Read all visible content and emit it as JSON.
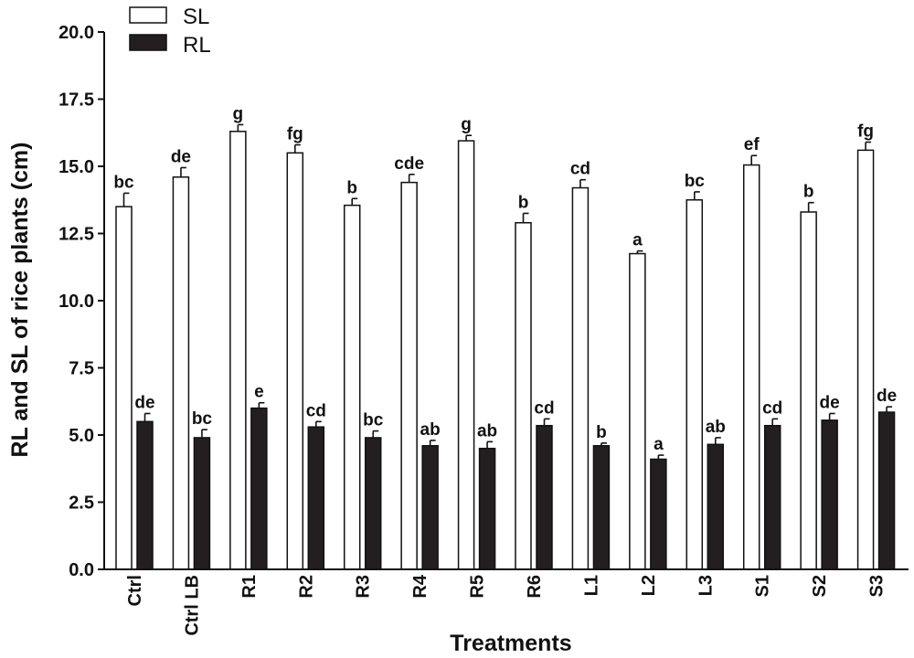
{
  "chart_data": {
    "type": "bar",
    "title": "",
    "xlabel": "Treatments",
    "ylabel": "RL and SL of rice plants (cm)",
    "ylim": [
      0,
      20
    ],
    "yticks": [
      "0.0",
      "2.5",
      "5.0",
      "7.5",
      "10.0",
      "12.5",
      "15.0",
      "17.5",
      "20.0"
    ],
    "categories": [
      "Ctrl",
      "Ctrl LB",
      "R1",
      "R2",
      "R3",
      "R4",
      "R5",
      "R6",
      "L1",
      "L2",
      "L3",
      "S1",
      "S2",
      "S3"
    ],
    "legend_position": "top-left",
    "series": [
      {
        "name": "SL",
        "fill": "#ffffff",
        "values": [
          13.5,
          14.6,
          16.3,
          15.5,
          13.55,
          14.4,
          15.95,
          12.9,
          14.2,
          11.75,
          13.75,
          15.05,
          13.3,
          15.6
        ],
        "errors": [
          0.5,
          0.35,
          0.25,
          0.3,
          0.25,
          0.3,
          0.2,
          0.35,
          0.3,
          0.1,
          0.3,
          0.35,
          0.35,
          0.3
        ],
        "labels": [
          "bc",
          "de",
          "g",
          "fg",
          "b",
          "cde",
          "g",
          "b",
          "cd",
          "a",
          "bc",
          "ef",
          "b",
          "fg"
        ]
      },
      {
        "name": "RL",
        "fill": "#231f20",
        "values": [
          5.5,
          4.9,
          6.0,
          5.3,
          4.9,
          4.6,
          4.5,
          5.35,
          4.6,
          4.1,
          4.65,
          5.35,
          5.55,
          5.85
        ],
        "errors": [
          0.3,
          0.3,
          0.2,
          0.2,
          0.25,
          0.2,
          0.25,
          0.25,
          0.1,
          0.15,
          0.25,
          0.25,
          0.25,
          0.2
        ],
        "labels": [
          "de",
          "bc",
          "e",
          "cd",
          "bc",
          "ab",
          "ab",
          "cd",
          "b",
          "a",
          "ab",
          "cd",
          "de",
          "de"
        ]
      }
    ]
  }
}
